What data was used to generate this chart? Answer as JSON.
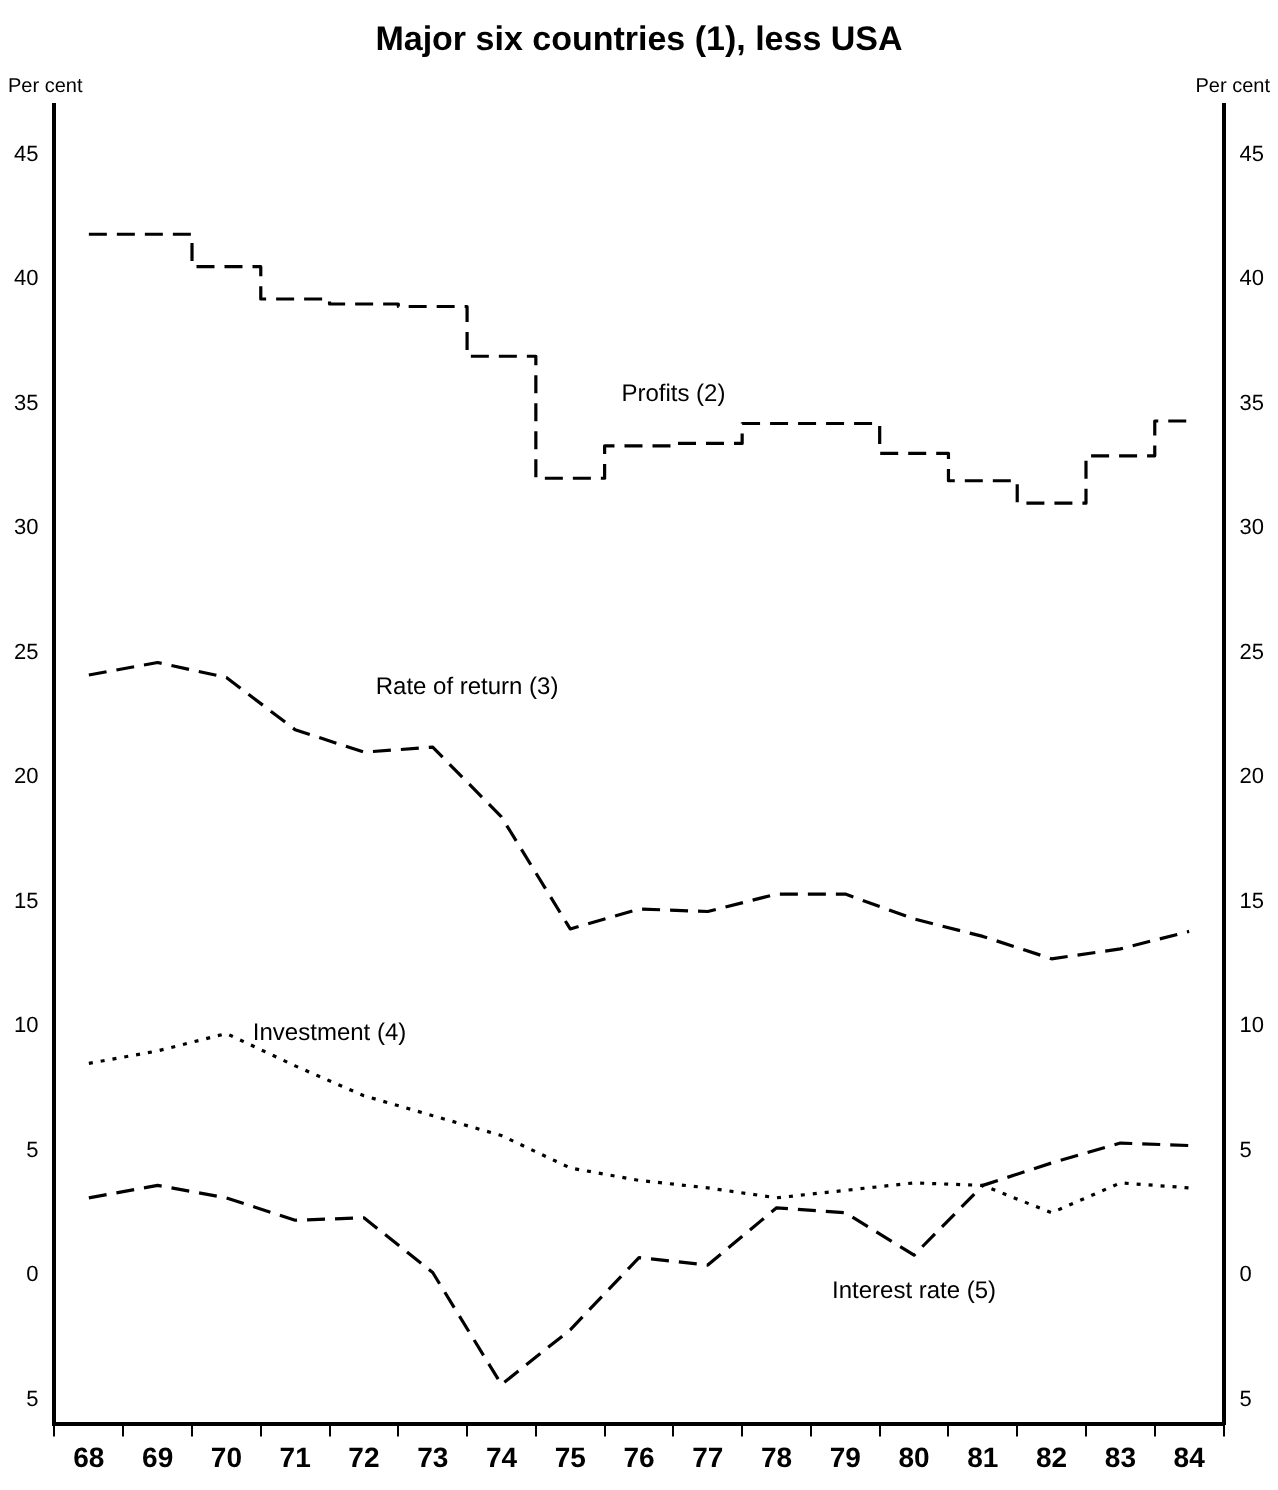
{
  "chart_data": {
    "type": "line",
    "title": "Major six countries (1), less USA",
    "ylabel": "Per cent",
    "y2label": "Per cent",
    "categories": [
      "68",
      "69",
      "70",
      "71",
      "72",
      "73",
      "74",
      "75",
      "76",
      "77",
      "78",
      "79",
      "80",
      "81",
      "82",
      "83",
      "84"
    ],
    "ylim": [
      -6,
      47
    ],
    "yticks": [
      {
        "value": -5,
        "label": "5"
      },
      0,
      5,
      10,
      15,
      20,
      25,
      30,
      35,
      40,
      45
    ],
    "y2lim": [
      -6,
      47
    ],
    "y2ticks": [
      {
        "value": -5,
        "label": "5"
      },
      0,
      5,
      10,
      15,
      20,
      25,
      30,
      35,
      40,
      45
    ],
    "grid": false,
    "legend": false,
    "marker": "none",
    "series": [
      {
        "name": "Profits (2)",
        "type": "step",
        "color": "#000000",
        "line_style": "dashed",
        "values": [
          41.8,
          41.8,
          40.5,
          39.2,
          39.0,
          38.9,
          36.9,
          32.0,
          33.3,
          33.4,
          34.2,
          34.2,
          33.0,
          31.9,
          31.0,
          32.9,
          34.3
        ]
      },
      {
        "name": "Rate of return (3)",
        "color": "#000000",
        "line_style": "dashed",
        "values": [
          24.1,
          24.6,
          24.0,
          21.9,
          21.0,
          21.2,
          18.4,
          13.9,
          14.7,
          14.6,
          15.3,
          15.3,
          14.3,
          13.6,
          12.7,
          13.1,
          13.8
        ]
      },
      {
        "name": "Investment (4)",
        "color": "#000000",
        "line_style": "dotted",
        "values": [
          8.5,
          9.0,
          9.7,
          8.4,
          7.2,
          6.4,
          5.6,
          4.3,
          3.8,
          3.5,
          3.1,
          3.4,
          3.7,
          3.6,
          2.5,
          3.7,
          3.5
        ]
      },
      {
        "name": "Interest rate (5)",
        "color": "#000000",
        "line_style": "dashed",
        "values": [
          3.1,
          3.6,
          3.1,
          2.2,
          2.3,
          0.1,
          -4.4,
          -2.2,
          0.7,
          0.4,
          2.7,
          2.5,
          0.8,
          3.6,
          4.5,
          5.3,
          5.2
        ]
      }
    ]
  }
}
